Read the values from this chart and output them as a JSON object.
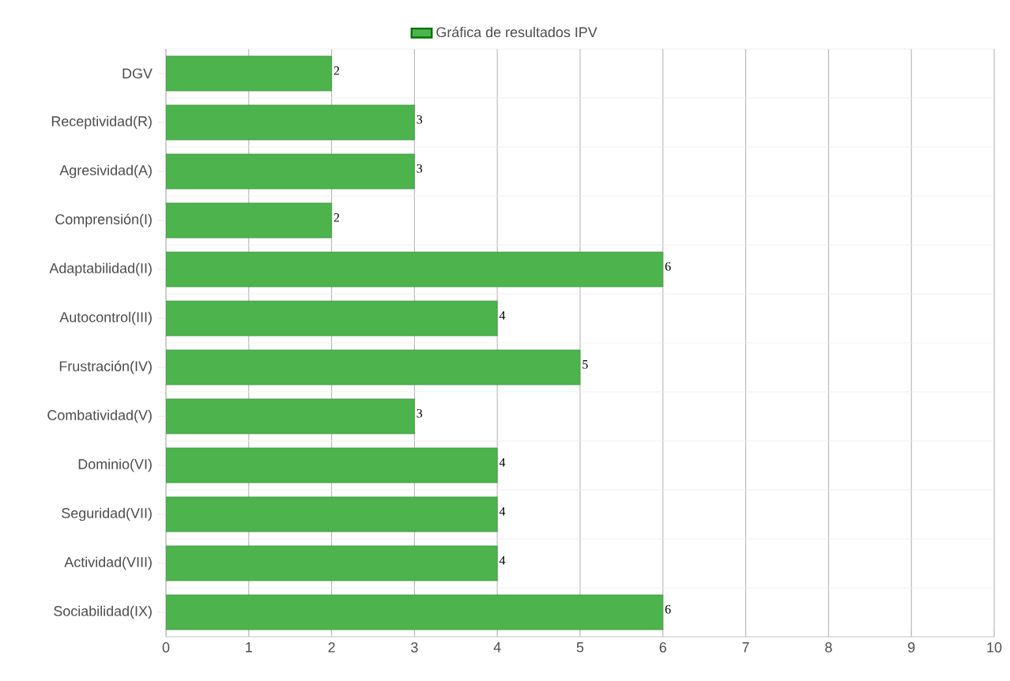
{
  "chart_data": {
    "type": "bar",
    "orientation": "horizontal",
    "categories": [
      "DGV",
      "Receptividad(R)",
      "Agresividad(A)",
      "Comprensión(I)",
      "Adaptabilidad(II)",
      "Autocontrol(III)",
      "Frustración(IV)",
      "Combatividad(V)",
      "Dominio(VI)",
      "Seguridad(VII)",
      "Actividad(VIII)",
      "Sociabilidad(IX)"
    ],
    "series": [
      {
        "name": "Gráfica de resultados IPV",
        "color": "#4db34d",
        "values": [
          2,
          3,
          3,
          2,
          6,
          4,
          5,
          3,
          4,
          4,
          4,
          6
        ]
      }
    ],
    "xlim": [
      0,
      10
    ],
    "xticks": [
      0,
      1,
      2,
      3,
      4,
      5,
      6,
      7,
      8,
      9,
      10
    ],
    "grid": true,
    "legend": "top",
    "data_labels": true
  }
}
